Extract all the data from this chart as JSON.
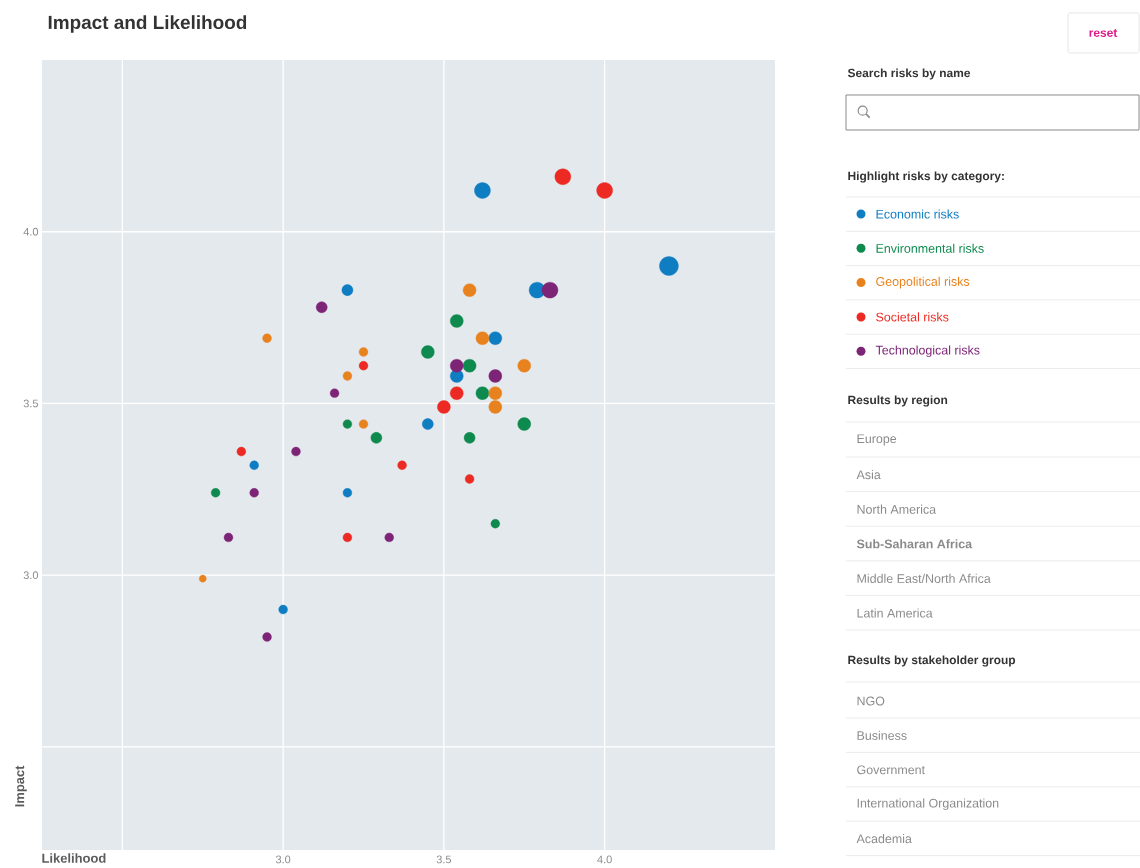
{
  "chart_data": {
    "type": "bubble",
    "title": "Impact and Likelihood",
    "xlabel": "Likelihood",
    "ylabel": "Impact",
    "legend_title": "Highlight risks by category:",
    "xlim": [
      2.25,
      4.53
    ],
    "ylim": [
      2.2,
      4.5
    ],
    "xticks": [
      {
        "value": 2.5,
        "label": null
      },
      {
        "value": 3,
        "label": "3.0"
      },
      {
        "value": 3.5,
        "label": "3.5"
      },
      {
        "value": 4,
        "label": "4.0"
      }
    ],
    "yticks": [
      {
        "value": 2.5,
        "label": null
      },
      {
        "value": 3,
        "label": "3.0"
      },
      {
        "value": 3.5,
        "label": "3.5"
      },
      {
        "value": 4,
        "label": "4.0"
      }
    ],
    "grid": true,
    "legend": "right",
    "marker": "circle",
    "series": [
      {
        "name": "Economic risks",
        "color": "#0f7dc2",
        "x": [
          3.62,
          4.2,
          3.79,
          3.2,
          3.66,
          3.54,
          3.45,
          2.91,
          3.2,
          3.0
        ],
        "values": [
          4.12,
          3.9,
          3.83,
          3.83,
          3.69,
          3.58,
          3.44,
          3.32,
          3.24,
          2.9
        ],
        "sizes": [
          0.71,
          1,
          0.71,
          0.34,
          0.47,
          0.47,
          0.34,
          0.22,
          0.22,
          0.22
        ]
      },
      {
        "name": "Environmental risks",
        "color": "#0e8a4e",
        "x": [
          3.54,
          3.45,
          3.58,
          3.62,
          3.2,
          3.29,
          3.58,
          3.75,
          2.79,
          3.66
        ],
        "values": [
          3.74,
          3.65,
          3.61,
          3.53,
          3.44,
          3.4,
          3.4,
          3.44,
          3.24,
          3.15
        ],
        "sizes": [
          0.47,
          0.47,
          0.47,
          0.47,
          0.22,
          0.34,
          0.34,
          0.47,
          0.22,
          0.22
        ]
      },
      {
        "name": "Geopolitical risks",
        "color": "#e8821e",
        "x": [
          3.58,
          2.95,
          3.62,
          3.25,
          3.2,
          3.75,
          3.66,
          3.66,
          3.25,
          2.75
        ],
        "values": [
          3.83,
          3.69,
          3.69,
          3.65,
          3.58,
          3.61,
          3.53,
          3.49,
          3.44,
          2.99
        ],
        "sizes": [
          0.47,
          0.22,
          0.47,
          0.22,
          0.22,
          0.47,
          0.47,
          0.47,
          0.22,
          0.14
        ]
      },
      {
        "name": "Societal risks",
        "color": "#ec2a23",
        "x": [
          3.87,
          4.0,
          3.25,
          3.54,
          3.5,
          2.87,
          3.37,
          3.58,
          3.2
        ],
        "values": [
          4.16,
          4.12,
          3.61,
          3.53,
          3.49,
          3.36,
          3.32,
          3.28,
          3.11
        ],
        "sizes": [
          0.71,
          0.71,
          0.22,
          0.47,
          0.47,
          0.22,
          0.22,
          0.22,
          0.22
        ]
      },
      {
        "name": "Technological risks",
        "color": "#7e2477",
        "x": [
          3.83,
          3.12,
          3.54,
          3.66,
          3.16,
          3.04,
          2.91,
          2.83,
          3.33,
          2.95
        ],
        "values": [
          3.83,
          3.78,
          3.61,
          3.58,
          3.53,
          3.36,
          3.24,
          3.11,
          3.11,
          2.82
        ],
        "sizes": [
          0.71,
          0.34,
          0.47,
          0.47,
          0.22,
          0.22,
          0.22,
          0.22,
          0.22,
          0.22
        ]
      }
    ],
    "annotations": [
      "reset",
      "Search risks by name",
      "Results by region",
      "Europe",
      "Asia",
      "North America",
      "**Sub-Saharan Africa**",
      "Middle East/North Africa",
      "Latin America",
      "Results by stakeholder group",
      "NGO",
      "Business",
      "Government",
      "International Organization",
      "Academia"
    ]
  }
}
